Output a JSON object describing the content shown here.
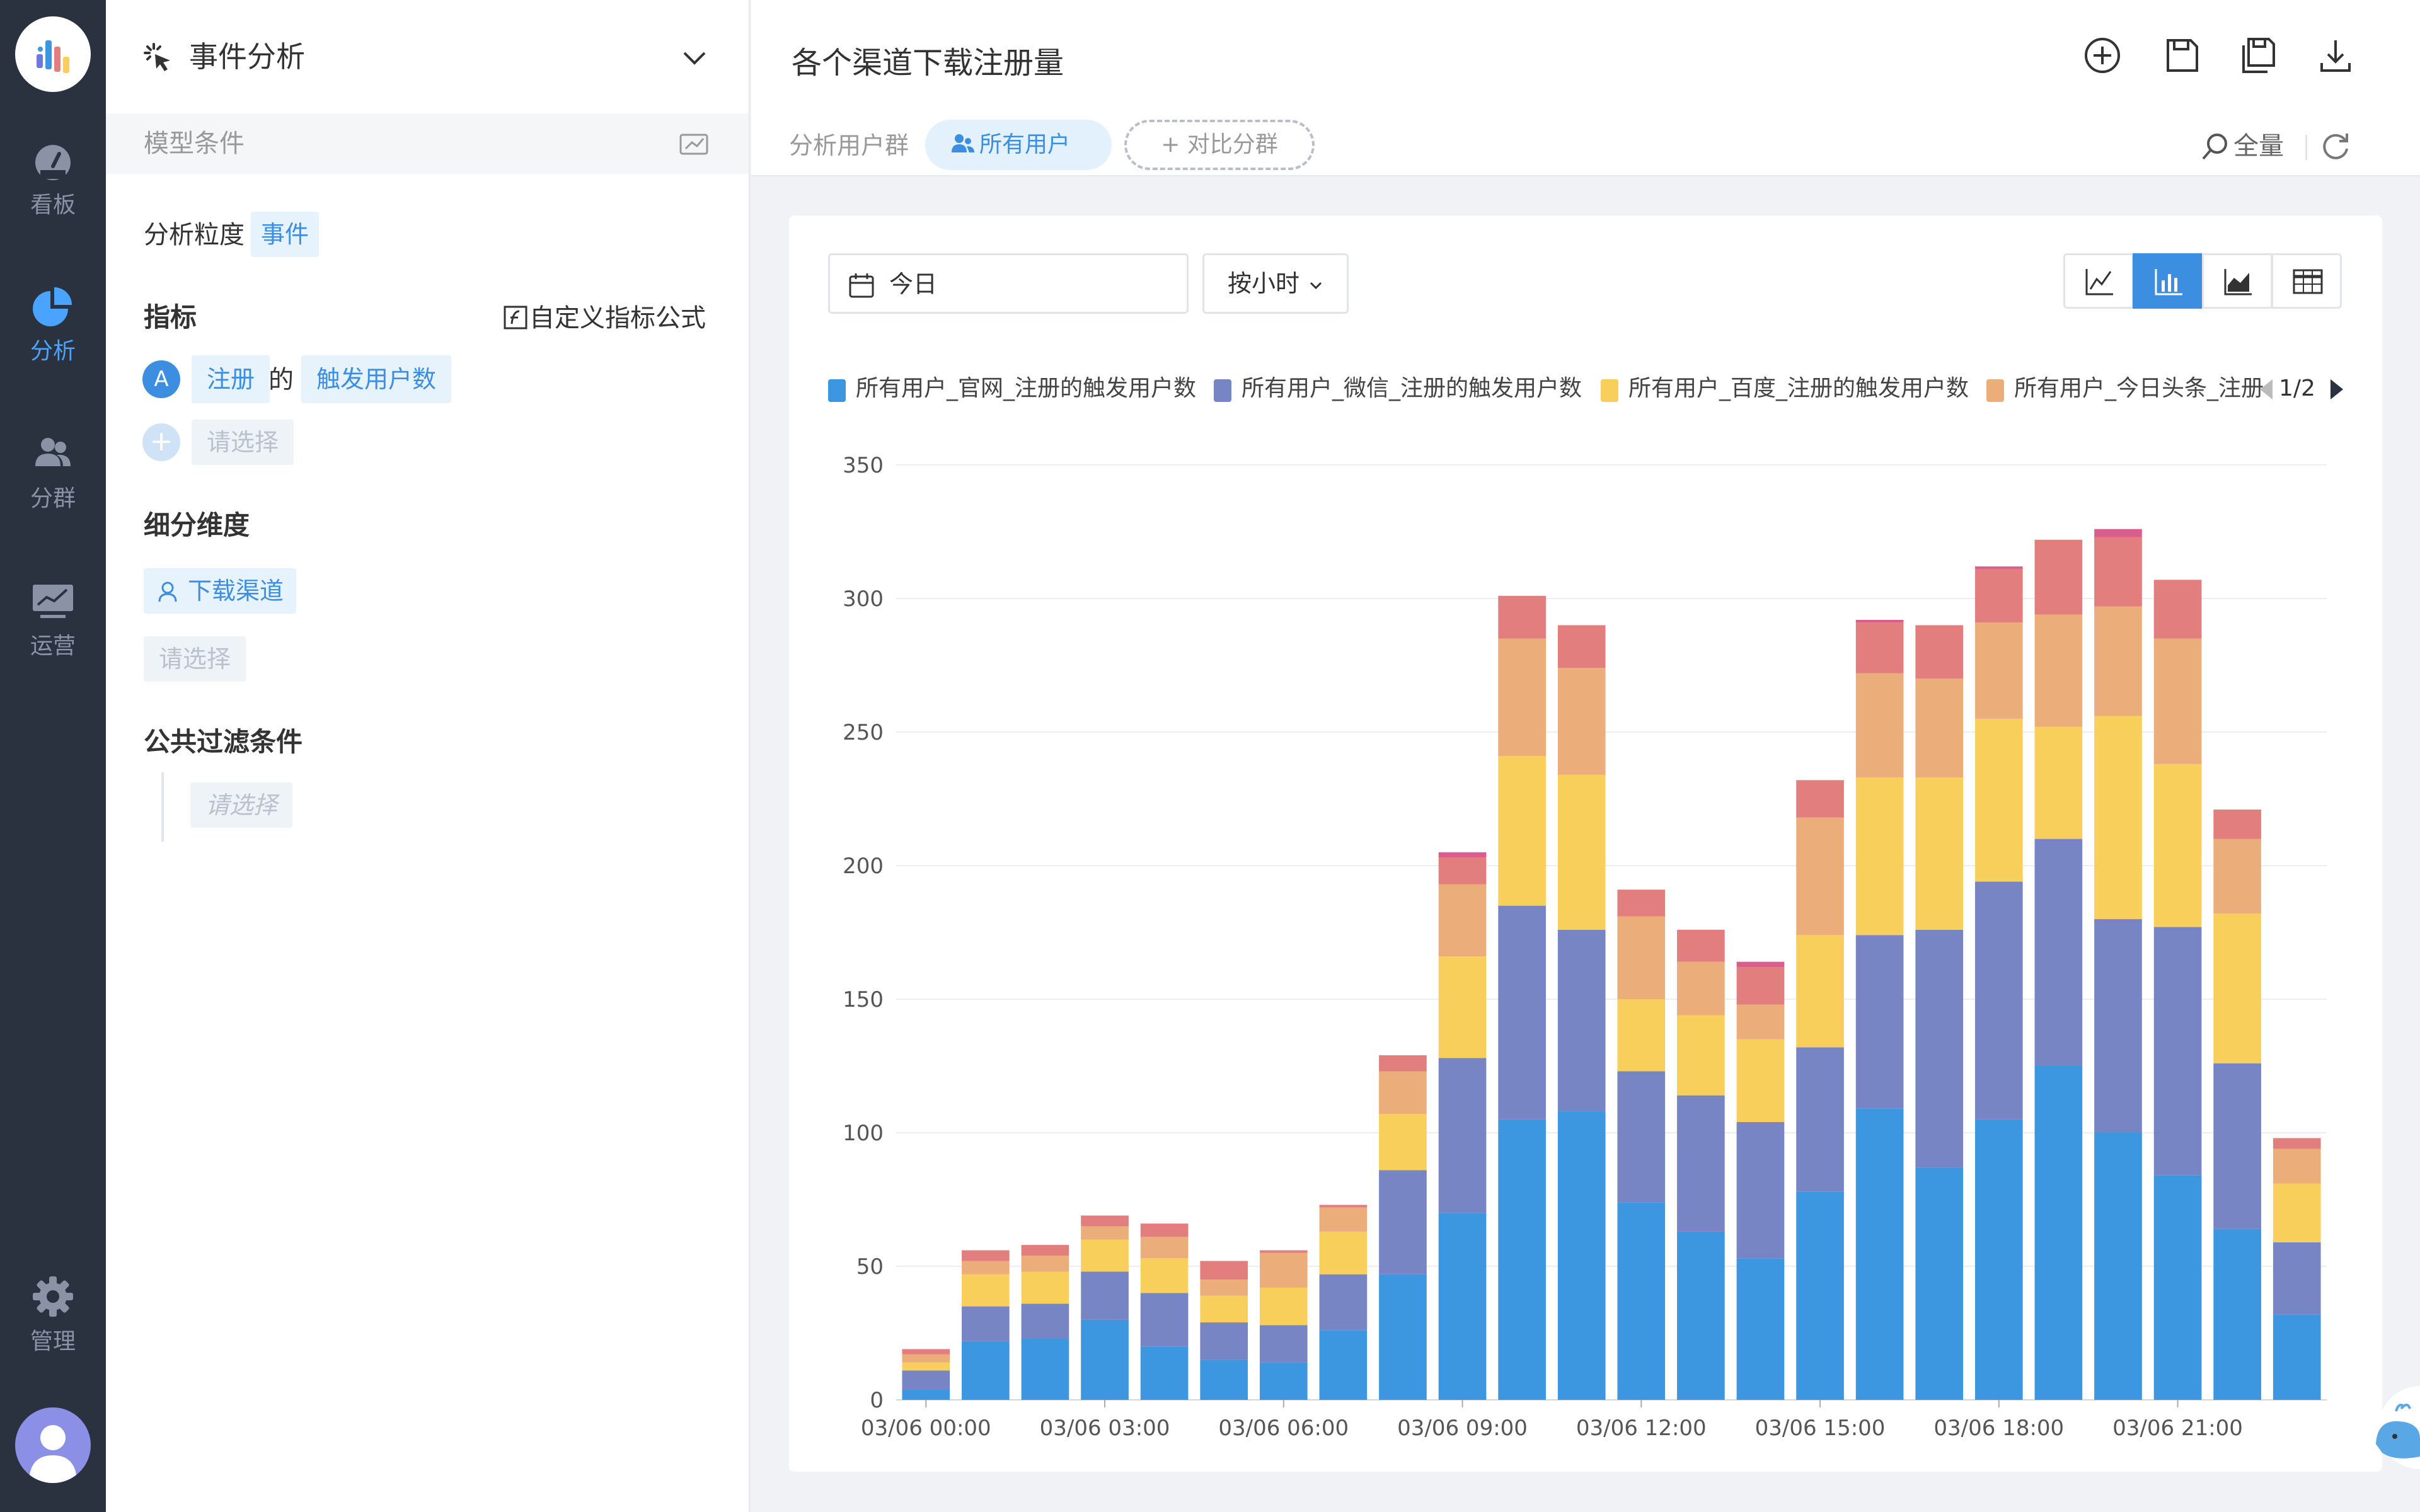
{
  "nav": {
    "items": [
      {
        "label": "看板",
        "icon": "dashboard-gauge-icon"
      },
      {
        "label": "分析",
        "icon": "pie-chart-icon",
        "active": true
      },
      {
        "label": "分群",
        "icon": "users-icon"
      },
      {
        "label": "运营",
        "icon": "monitor-chart-icon"
      },
      {
        "label": "管理",
        "icon": "gear-icon"
      }
    ]
  },
  "panel": {
    "title": "事件分析",
    "model_conditions": "模型条件",
    "granularity_label": "分析粒度",
    "granularity_value": "事件",
    "metrics_label": "指标",
    "custom_formula": "自定义指标公式",
    "metric_badge": "A",
    "metric_event": "注册",
    "metric_of": "的",
    "metric_measure": "触发用户数",
    "metric_placeholder": "请选择",
    "breakdown_label": "细分维度",
    "breakdown_value": "下载渠道",
    "breakdown_placeholder": "请选择",
    "filter_label": "公共过滤条件",
    "filter_placeholder": "请选择"
  },
  "header": {
    "title": "各个渠道下载注册量",
    "user_group_label": "分析用户群",
    "all_users": "所有用户",
    "compare_group": "+ 对比分群",
    "full_label": "全量"
  },
  "toolbar": {
    "date": "今日",
    "granularity": "按小时"
  },
  "legend": {
    "pager": "1/2"
  },
  "colors": {
    "primary": "#3c8ee0",
    "nav_bg": "#2b323f",
    "series": [
      "#3d97e0",
      "#7885c4",
      "#f9cf5b",
      "#ebad79",
      "#e37e7e",
      "#d95d8d"
    ]
  },
  "chart_data": {
    "type": "bar",
    "stacked": true,
    "y_ticks": [
      "0",
      "50",
      "100",
      "150",
      "200",
      "250",
      "300",
      "350"
    ],
    "ylim": [
      0,
      350
    ],
    "grid": true,
    "x_tick_labels": [
      "03/06 00:00",
      "03/06 03:00",
      "03/06 06:00",
      "03/06 09:00",
      "03/06 12:00",
      "03/06 15:00",
      "03/06 18:00",
      "03/06 21:00"
    ],
    "categories": [
      "00:00",
      "01:00",
      "02:00",
      "03:00",
      "04:00",
      "05:00",
      "06:00",
      "07:00",
      "08:00",
      "09:00",
      "10:00",
      "11:00",
      "12:00",
      "13:00",
      "14:00",
      "15:00",
      "16:00",
      "17:00",
      "18:00",
      "19:00",
      "20:00",
      "21:00",
      "22:00",
      "23:00"
    ],
    "series": [
      {
        "name": "所有用户_官网_注册的触发用户数",
        "values": [
          4,
          22,
          23,
          30,
          20,
          15,
          14,
          26,
          47,
          70,
          105,
          108,
          74,
          63,
          53,
          78,
          109,
          87,
          105,
          125,
          100,
          84,
          64,
          32
        ]
      },
      {
        "name": "所有用户_微信_注册的触发用户数",
        "values": [
          7,
          13,
          13,
          18,
          20,
          14,
          14,
          21,
          39,
          58,
          80,
          68,
          49,
          51,
          51,
          54,
          65,
          89,
          89,
          85,
          80,
          93,
          62,
          27
        ]
      },
      {
        "name": "所有用户_百度_注册的触发用户数",
        "values": [
          3,
          12,
          12,
          12,
          13,
          10,
          14,
          16,
          21,
          38,
          56,
          58,
          27,
          30,
          31,
          42,
          59,
          57,
          61,
          42,
          76,
          61,
          56,
          22
        ]
      },
      {
        "name": "所有用户_今日头条_注册的触发用户数",
        "values": [
          3,
          5,
          6,
          5,
          8,
          6,
          13,
          9,
          16,
          27,
          44,
          40,
          31,
          20,
          13,
          44,
          39,
          37,
          36,
          42,
          41,
          47,
          28,
          13
        ]
      },
      {
        "name": "",
        "values": [
          2,
          4,
          4,
          4,
          5,
          7,
          1,
          1,
          6,
          10,
          16,
          16,
          10,
          12,
          14,
          14,
          19,
          20,
          20,
          28,
          26,
          22,
          11,
          4
        ]
      },
      {
        "name": "",
        "values": [
          0,
          0,
          0,
          0,
          0,
          0,
          0,
          0,
          0,
          2,
          0,
          0,
          0,
          0,
          2,
          0,
          1,
          0,
          1,
          0,
          3,
          0,
          0,
          0
        ]
      }
    ]
  }
}
